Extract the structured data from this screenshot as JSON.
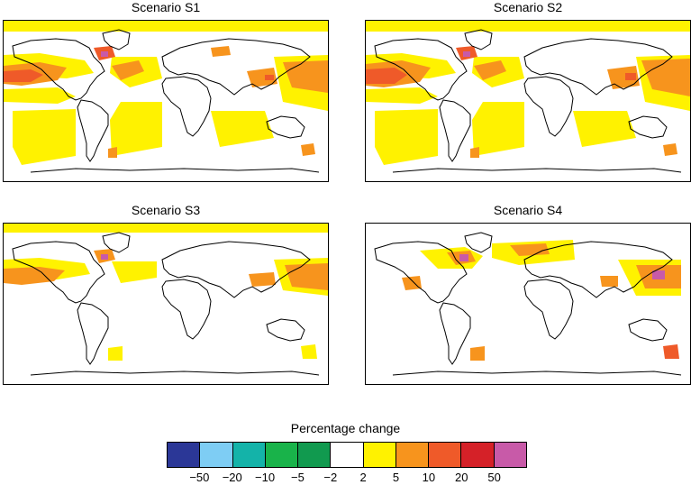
{
  "panels": [
    {
      "title": "Scenario S1",
      "map_id": "s1"
    },
    {
      "title": "Scenario S2",
      "map_id": "s2"
    },
    {
      "title": "Scenario S3",
      "map_id": "s3"
    },
    {
      "title": "Scenario S4",
      "map_id": "s4"
    }
  ],
  "legend": {
    "title": "Percentage change",
    "colors": [
      "#2b3797",
      "#7ecdf4",
      "#14b3a9",
      "#19b34a",
      "#119a4f",
      "#ffffff",
      "#fff200",
      "#f7941d",
      "#ef5a29",
      "#d52128",
      "#c85aa8"
    ],
    "tick_labels": [
      "−50",
      "−20",
      "−10",
      "−5",
      "−2",
      "2",
      "5",
      "10",
      "20",
      "50"
    ]
  }
}
